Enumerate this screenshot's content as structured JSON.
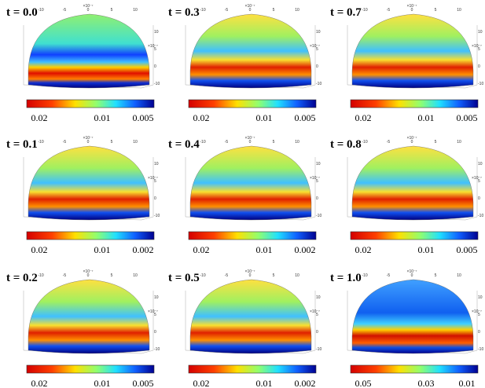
{
  "figure": {
    "axis": {
      "top_ticks": [
        "-10",
        "-5",
        "0",
        "5",
        "10"
      ],
      "exponent": "×10⁻⁷",
      "side_ticks": [
        "10",
        "5",
        "0",
        "-10"
      ]
    },
    "panels": [
      {
        "title": "t = 0.0",
        "colorbar_labels": [
          "0.02",
          "0.01",
          "0.005"
        ]
      },
      {
        "title": "t = 0.3",
        "colorbar_labels": [
          "0.02",
          "0.01",
          "0.005"
        ]
      },
      {
        "title": "t = 0.7",
        "colorbar_labels": [
          "0.02",
          "0.01",
          "0.005"
        ]
      },
      {
        "title": "t = 0.1",
        "colorbar_labels": [
          "0.02",
          "0.01",
          "0.002"
        ]
      },
      {
        "title": "t = 0.4",
        "colorbar_labels": [
          "0.02",
          "0.01",
          "0.002"
        ]
      },
      {
        "title": "t = 0.8",
        "colorbar_labels": [
          "0.02",
          "0.01",
          "0.005"
        ]
      },
      {
        "title": "t = 0.2",
        "colorbar_labels": [
          "0.02",
          "0.01",
          "0.005"
        ]
      },
      {
        "title": "t = 0.5",
        "colorbar_labels": [
          "0.02",
          "0.01",
          "0.002"
        ]
      },
      {
        "title": "t = 1.0",
        "colorbar_labels": [
          "0.05",
          "0.03",
          "0.01"
        ]
      }
    ]
  }
}
